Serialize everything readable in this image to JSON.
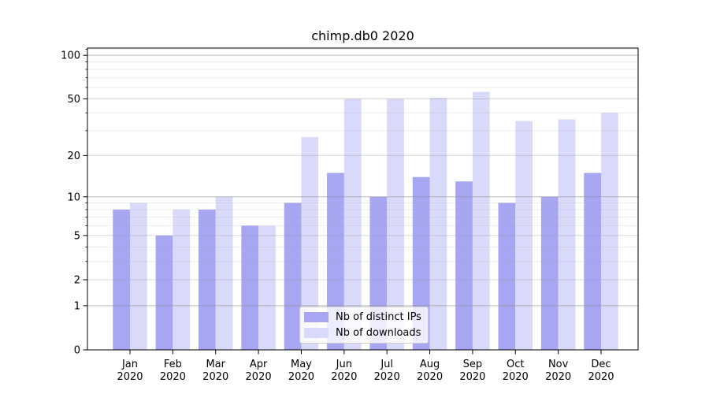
{
  "chart_data": {
    "type": "bar",
    "title": "chimp.db0 2020",
    "categories": [
      "Jan",
      "Feb",
      "Mar",
      "Apr",
      "May",
      "Jun",
      "Jul",
      "Aug",
      "Sep",
      "Oct",
      "Nov",
      "Dec"
    ],
    "category_year_label": "2020",
    "series": [
      {
        "name": "Nb of distinct IPs",
        "color": "#a6a6f3",
        "values": [
          8,
          5,
          8,
          6,
          9,
          15,
          10,
          14,
          13,
          9,
          10,
          15
        ]
      },
      {
        "name": "Nb of downloads",
        "color": "#d9d9fa",
        "values": [
          9,
          8,
          10,
          6,
          27,
          50,
          50,
          51,
          56,
          35,
          36,
          40
        ]
      }
    ],
    "yscale": "log1p",
    "ylim": [
      0,
      112
    ],
    "yticks_labeled": [
      0,
      1,
      2,
      5,
      10,
      20,
      50,
      100
    ],
    "gridlines_decade": [
      1,
      10,
      100
    ],
    "gridlines_mid": [
      2,
      5,
      20,
      50
    ],
    "gridlines_minor": [
      3,
      4,
      6,
      7,
      8,
      9,
      30,
      40,
      60,
      70,
      80,
      90,
      110
    ],
    "grid": true,
    "legend_position": "lower center",
    "xlabel": "",
    "ylabel": ""
  },
  "colors": {
    "axis": "#000000",
    "grid_decade": "#c2c2c2",
    "grid_mid": "#dedede",
    "grid_minor": "#efefef",
    "text": "#000000"
  }
}
